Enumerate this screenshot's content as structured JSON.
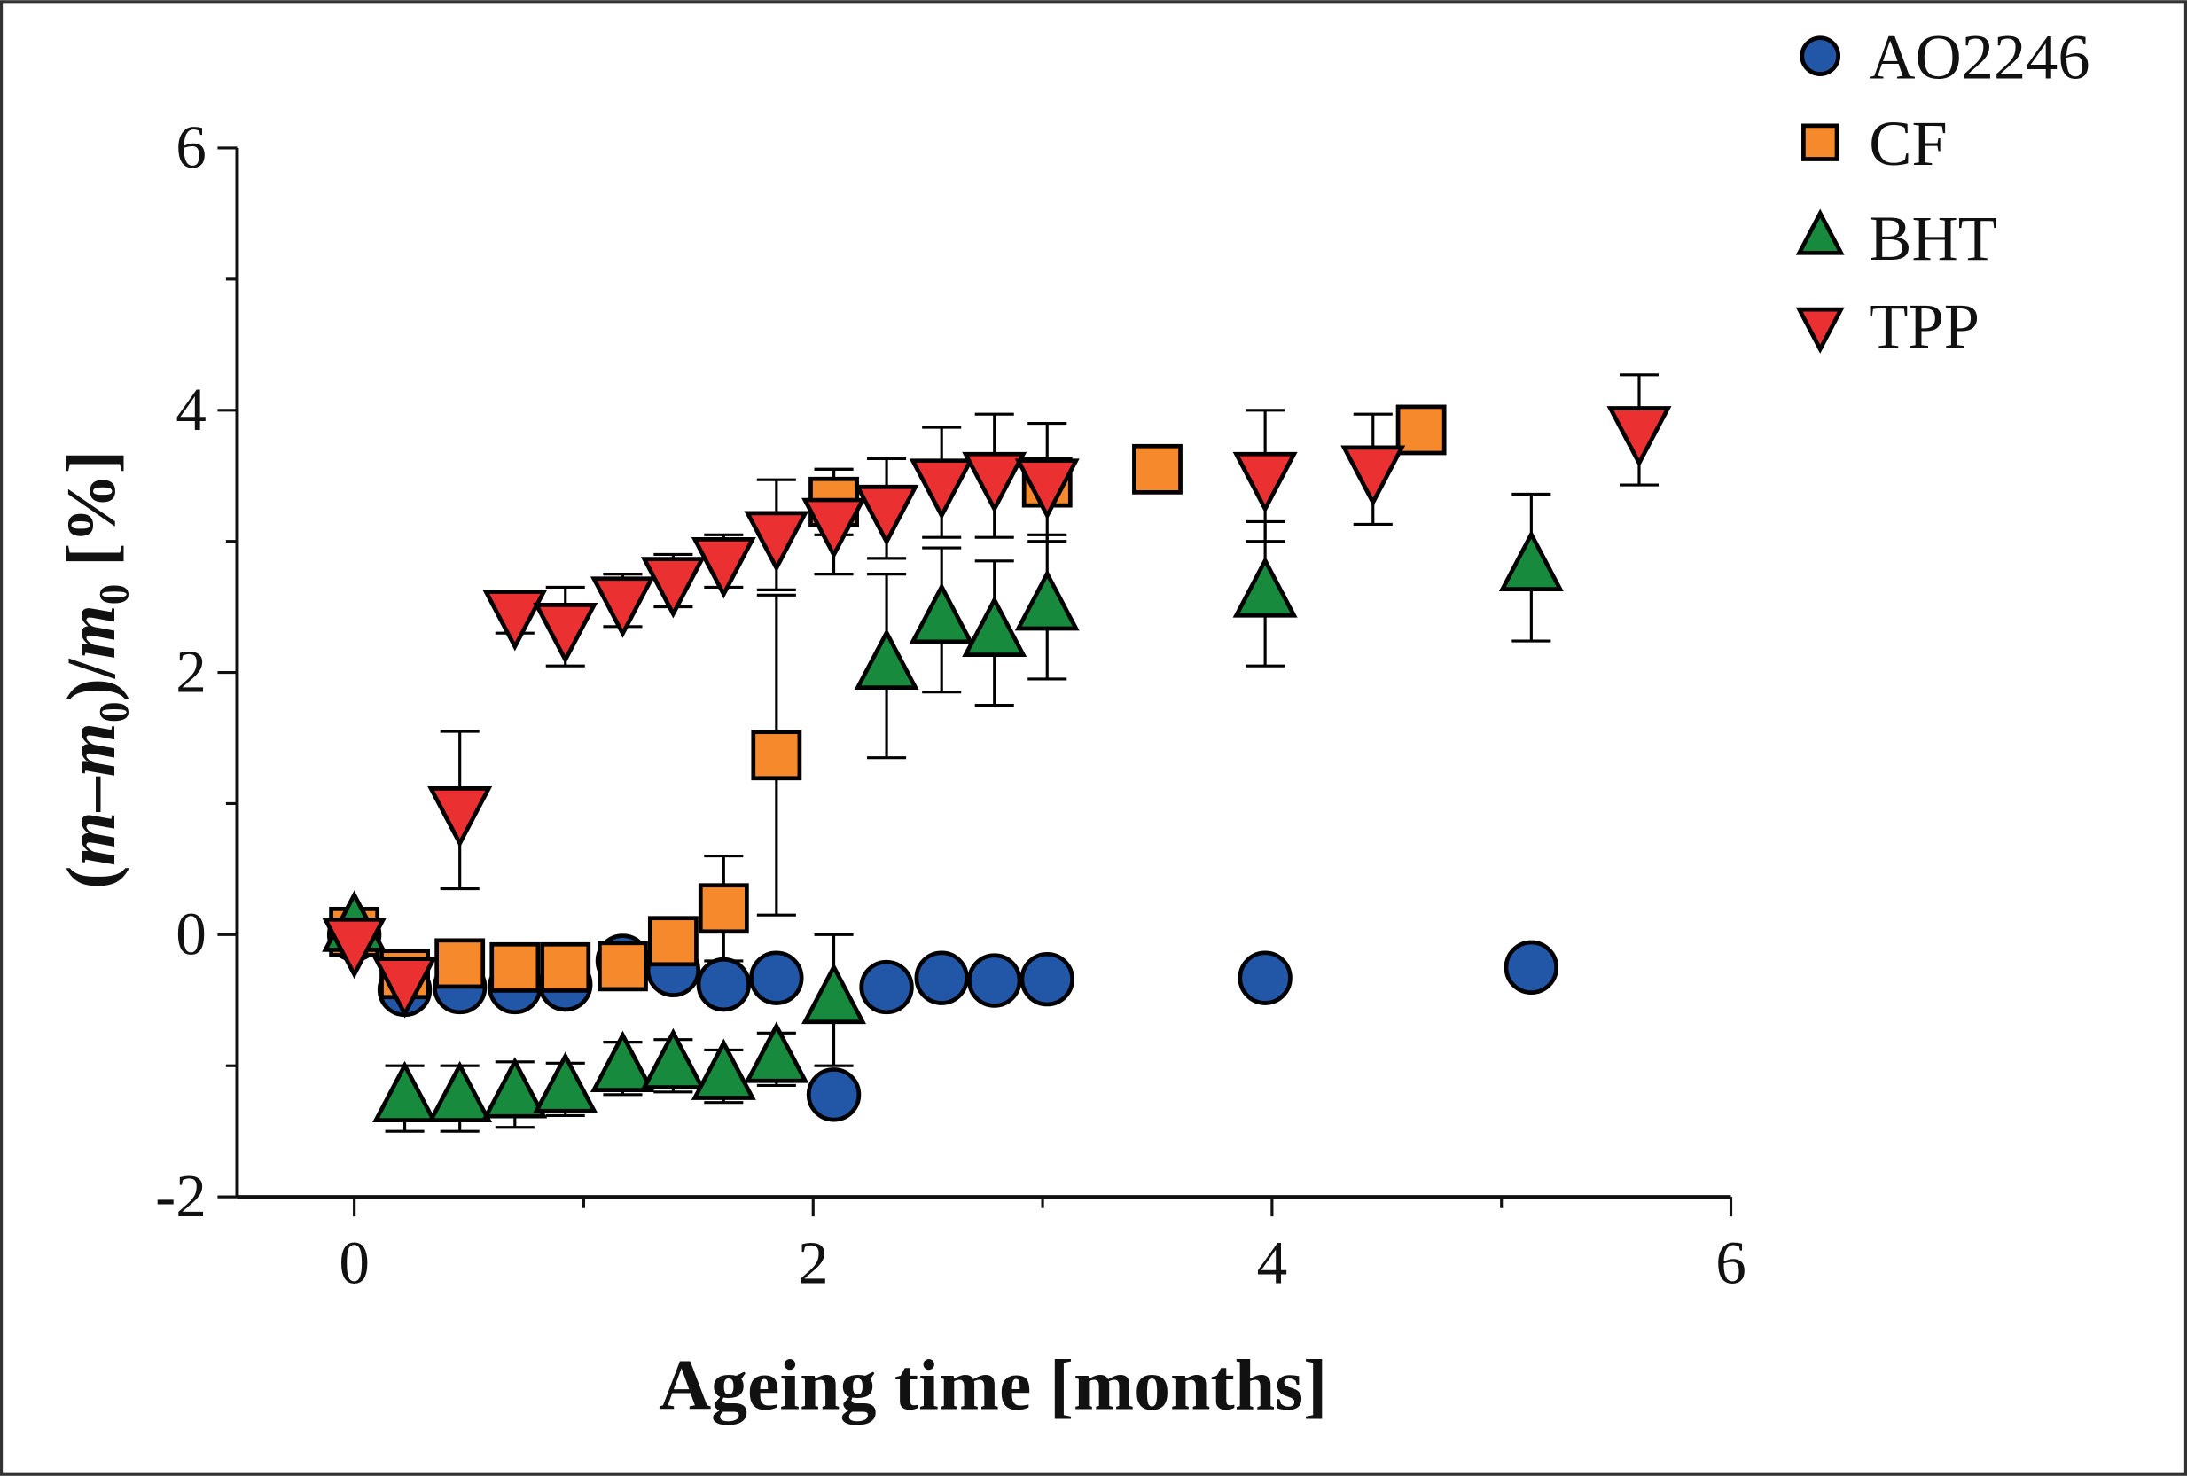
{
  "chart_data": {
    "type": "scatter",
    "xlabel": "Ageing time [months]",
    "ylabel_parts": {
      "open": "(",
      "m1": "m",
      "dash": "–",
      "m2": "m",
      "sub1": "0",
      "slash": ")/",
      "m3": "m",
      "sub2": "0",
      "unit": " [%]"
    },
    "xlim": [
      -0.5,
      6
    ],
    "ylim": [
      -2,
      6
    ],
    "xticks": [
      "0",
      "2",
      "4",
      "6"
    ],
    "xtick_values": [
      0,
      2,
      4,
      6
    ],
    "yticks": [
      "-2",
      "0",
      "2",
      "4",
      "6"
    ],
    "ytick_values": [
      -2,
      0,
      2,
      4,
      6
    ],
    "grid": false,
    "legend": "top-right",
    "series": [
      {
        "name": "AO2246",
        "marker": "circle",
        "color": "#2257a8",
        "x": [
          0,
          0.22,
          0.46,
          0.7,
          0.92,
          1.17,
          1.39,
          1.61,
          1.84,
          2.09,
          2.32,
          2.56,
          2.79,
          3.02,
          3.97,
          5.13
        ],
        "y": [
          0,
          -0.42,
          -0.4,
          -0.4,
          -0.38,
          -0.2,
          -0.27,
          -0.38,
          -0.33,
          -1.22,
          -0.4,
          -0.33,
          -0.35,
          -0.34,
          -0.33,
          -0.25
        ],
        "err": [
          0.1,
          0.1,
          0.1,
          0.1,
          0.1,
          0.1,
          0.1,
          0.1,
          0.1,
          0.1,
          0.1,
          0.1,
          0.1,
          0.1,
          0.1,
          0.1
        ]
      },
      {
        "name": "CF",
        "marker": "square",
        "color": "#f5892c",
        "x": [
          0,
          0.22,
          0.46,
          0.7,
          0.92,
          1.17,
          1.39,
          1.61,
          1.84,
          2.09,
          3.02,
          3.5,
          4.65
        ],
        "y": [
          0.02,
          -0.3,
          -0.22,
          -0.25,
          -0.25,
          -0.24,
          -0.05,
          0.2,
          1.37,
          3.3,
          3.45,
          3.55,
          3.85
        ],
        "err": [
          0.1,
          0.1,
          0.1,
          0.1,
          0.1,
          0.1,
          0.1,
          0.4,
          1.22,
          0.25,
          0.1,
          0.1,
          0.1
        ]
      },
      {
        "name": "BHT",
        "marker": "triangle-up",
        "color": "#178a3e",
        "x": [
          0,
          0.22,
          0.46,
          0.7,
          0.92,
          1.17,
          1.39,
          1.61,
          1.84,
          2.09,
          2.32,
          2.56,
          2.79,
          3.02,
          3.97,
          5.13
        ],
        "y": [
          0.05,
          -1.25,
          -1.25,
          -1.22,
          -1.18,
          -1.02,
          -1.0,
          -1.08,
          -0.95,
          -0.5,
          2.05,
          2.4,
          2.3,
          2.5,
          2.6,
          2.8
        ],
        "err": [
          0.1,
          0.25,
          0.25,
          0.25,
          0.2,
          0.2,
          0.2,
          0.2,
          0.2,
          0.5,
          0.7,
          0.55,
          0.55,
          0.55,
          0.55,
          0.56
        ]
      },
      {
        "name": "TPP",
        "marker": "triangle-down",
        "color": "#ea3030",
        "x": [
          0,
          0.22,
          0.46,
          0.7,
          0.92,
          1.17,
          1.39,
          1.61,
          1.84,
          2.09,
          2.32,
          2.56,
          2.79,
          3.02,
          3.97,
          4.44,
          5.6
        ],
        "y": [
          -0.05,
          -0.35,
          0.95,
          2.45,
          2.35,
          2.55,
          2.7,
          2.85,
          3.05,
          3.15,
          3.25,
          3.45,
          3.5,
          3.45,
          3.5,
          3.55,
          3.85
        ],
        "err": [
          0.1,
          0.15,
          0.6,
          0.15,
          0.3,
          0.2,
          0.2,
          0.2,
          0.42,
          0.4,
          0.38,
          0.42,
          0.47,
          0.45,
          0.5,
          0.42,
          0.42
        ]
      }
    ]
  }
}
